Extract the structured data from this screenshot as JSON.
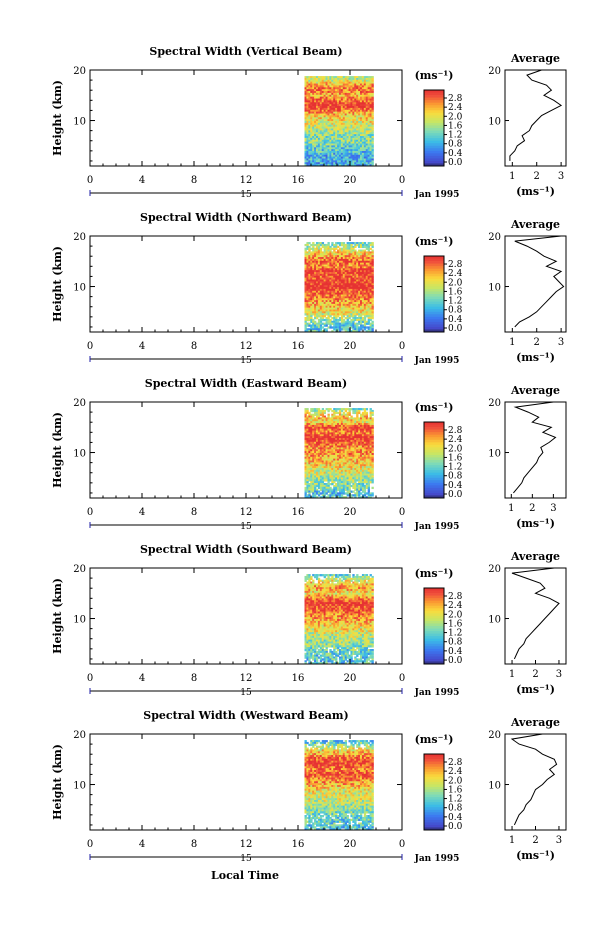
{
  "figure": {
    "xaxis_label": "Local Time",
    "date_label": "Jan 1995",
    "day_label": "15",
    "avg_title": "Average",
    "avg_unit_label": "(ms⁻¹)",
    "cbar_unit_label": "(ms⁻¹)"
  },
  "chart_data": [
    {
      "type": "heatmap",
      "title": "Spectral Width (Vertical Beam)",
      "ylabel": "Height (km)",
      "xlabel": "Local Time",
      "x_ticks": [
        "0",
        "4",
        "8",
        "12",
        "16",
        "20",
        "0"
      ],
      "xlim_hours": [
        0,
        24
      ],
      "data_hours": [
        16.5,
        21.8
      ],
      "y_ticks": [
        "20",
        "10"
      ],
      "ylim_km": [
        1,
        20
      ],
      "colorbar_ticks": [
        "2.8",
        "2.4",
        "2.0",
        "1.6",
        "1.2",
        "0.8",
        "0.4",
        "0.0"
      ],
      "colorbar_range": [
        0.0,
        3.0
      ],
      "profile_heights_km": [
        20,
        19,
        18,
        17,
        16,
        15,
        14,
        13,
        12,
        11,
        10,
        9,
        8,
        7,
        6,
        5,
        4,
        3,
        2
      ],
      "profile_width": [
        2.2,
        1.6,
        1.8,
        2.4,
        2.6,
        2.3,
        2.7,
        3.0,
        2.6,
        2.2,
        2.0,
        1.8,
        1.7,
        1.4,
        1.5,
        1.2,
        1.1,
        0.9,
        0.9
      ],
      "avg_xlim": [
        0.7,
        3.2
      ],
      "avg_xticks": [
        "1",
        "2",
        "3"
      ],
      "avg_yticks": [
        "20",
        "10"
      ]
    },
    {
      "type": "heatmap",
      "title": "Spectral Width (Northward Beam)",
      "ylabel": "Height (km)",
      "xlabel": "Local Time",
      "x_ticks": [
        "0",
        "4",
        "8",
        "12",
        "16",
        "20",
        "0"
      ],
      "xlim_hours": [
        0,
        24
      ],
      "data_hours": [
        16.5,
        21.8
      ],
      "y_ticks": [
        "20",
        "10"
      ],
      "ylim_km": [
        1,
        20
      ],
      "colorbar_ticks": [
        "2.8",
        "2.4",
        "2.0",
        "1.6",
        "1.2",
        "0.8",
        "0.4",
        "0.0"
      ],
      "colorbar_range": [
        0.0,
        3.0
      ],
      "profile_heights_km": [
        20,
        19,
        18,
        17,
        16,
        15,
        14,
        13,
        12,
        11,
        10,
        9,
        8,
        7,
        6,
        5,
        4,
        3,
        2
      ],
      "profile_width": [
        3.0,
        1.1,
        1.6,
        2.0,
        2.3,
        2.8,
        2.4,
        3.0,
        2.7,
        2.9,
        3.1,
        2.8,
        2.6,
        2.4,
        2.2,
        2.0,
        1.7,
        1.3,
        1.1
      ],
      "avg_xlim": [
        0.7,
        3.2
      ],
      "avg_xticks": [
        "1",
        "2",
        "3"
      ],
      "avg_yticks": [
        "20",
        "10"
      ]
    },
    {
      "type": "heatmap",
      "title": "Spectral Width (Eastward Beam)",
      "ylabel": "Height (km)",
      "xlabel": "Local Time",
      "x_ticks": [
        "0",
        "4",
        "8",
        "12",
        "16",
        "20",
        "0"
      ],
      "xlim_hours": [
        0,
        24
      ],
      "data_hours": [
        16.5,
        21.8
      ],
      "y_ticks": [
        "20",
        "10"
      ],
      "ylim_km": [
        1,
        20
      ],
      "colorbar_ticks": [
        "2.8",
        "2.4",
        "2.0",
        "1.6",
        "1.2",
        "0.8",
        "0.4",
        "0.0"
      ],
      "colorbar_range": [
        0.0,
        3.0
      ],
      "profile_heights_km": [
        20,
        19,
        18,
        17,
        16,
        15,
        14,
        13,
        12,
        11,
        10,
        9,
        8,
        7,
        6,
        5,
        4,
        3,
        2
      ],
      "profile_width": [
        3.0,
        1.2,
        1.8,
        2.3,
        2.0,
        2.9,
        2.5,
        3.1,
        2.8,
        2.4,
        2.5,
        2.3,
        2.2,
        2.0,
        1.8,
        1.6,
        1.5,
        1.3,
        1.1
      ],
      "avg_xlim": [
        0.7,
        3.6
      ],
      "avg_xticks": [
        "1",
        "2",
        "3"
      ],
      "avg_yticks": [
        "20",
        "10"
      ]
    },
    {
      "type": "heatmap",
      "title": "Spectral Width (Southward Beam)",
      "ylabel": "Height (km)",
      "xlabel": "Local Time",
      "x_ticks": [
        "0",
        "4",
        "8",
        "12",
        "16",
        "20",
        "0"
      ],
      "xlim_hours": [
        0,
        24
      ],
      "data_hours": [
        16.5,
        21.8
      ],
      "y_ticks": [
        "20",
        "10"
      ],
      "ylim_km": [
        1,
        20
      ],
      "colorbar_ticks": [
        "2.8",
        "2.4",
        "2.0",
        "1.6",
        "1.2",
        "0.8",
        "0.4",
        "0.0"
      ],
      "colorbar_range": [
        0.0,
        3.0
      ],
      "profile_heights_km": [
        20,
        19,
        18,
        17,
        16,
        15,
        14,
        13,
        12,
        11,
        10,
        9,
        8,
        7,
        6,
        5,
        4,
        3,
        2
      ],
      "profile_width": [
        2.8,
        1.0,
        1.6,
        2.2,
        2.4,
        2.0,
        2.6,
        3.0,
        2.8,
        2.6,
        2.4,
        2.2,
        2.0,
        1.8,
        1.6,
        1.5,
        1.3,
        1.2,
        1.1
      ],
      "avg_xlim": [
        0.7,
        3.3
      ],
      "avg_xticks": [
        "1",
        "2",
        "3"
      ],
      "avg_yticks": [
        "20",
        "10"
      ]
    },
    {
      "type": "heatmap",
      "title": "Spectral Width (Westward Beam)",
      "ylabel": "Height (km)",
      "xlabel": "Local Time",
      "x_ticks": [
        "0",
        "4",
        "8",
        "12",
        "16",
        "20",
        "0"
      ],
      "xlim_hours": [
        0,
        24
      ],
      "data_hours": [
        16.5,
        21.8
      ],
      "y_ticks": [
        "20",
        "10"
      ],
      "ylim_km": [
        1,
        20
      ],
      "colorbar_ticks": [
        "2.8",
        "2.4",
        "2.0",
        "1.6",
        "1.2",
        "0.8",
        "0.4",
        "0.0"
      ],
      "colorbar_range": [
        0.0,
        3.0
      ],
      "profile_heights_km": [
        20,
        19,
        18,
        17,
        16,
        15,
        14,
        13,
        12,
        11,
        10,
        9,
        8,
        7,
        6,
        5,
        4,
        3,
        2
      ],
      "profile_width": [
        2.3,
        1.0,
        1.3,
        2.0,
        2.3,
        2.8,
        2.9,
        2.6,
        2.8,
        2.5,
        2.3,
        2.0,
        1.9,
        1.8,
        1.6,
        1.5,
        1.3,
        1.2,
        1.1
      ],
      "avg_xlim": [
        0.7,
        3.3
      ],
      "avg_xticks": [
        "1",
        "2",
        "3"
      ],
      "avg_yticks": [
        "20",
        "10"
      ]
    }
  ]
}
